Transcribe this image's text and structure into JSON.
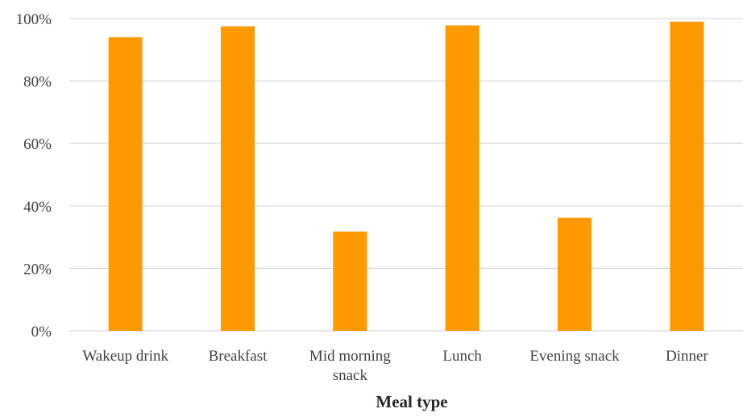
{
  "chart_data": {
    "type": "bar",
    "categories": [
      [
        "Wakeup drink"
      ],
      [
        "Breakfast"
      ],
      [
        "Mid morning",
        "snack"
      ],
      [
        "Lunch"
      ],
      [
        "Evening snack"
      ],
      [
        "Dinner"
      ]
    ],
    "values": [
      94,
      97.5,
      31.8,
      97.8,
      36.2,
      99
    ],
    "ylim": [
      0,
      100
    ],
    "yticks": [
      "0%",
      "20%",
      "40%",
      "60%",
      "80%",
      "100%"
    ],
    "xlabel": "Meal type",
    "ylabel": "",
    "bar_color": "#FF9900",
    "grid": true,
    "legend": "none"
  }
}
